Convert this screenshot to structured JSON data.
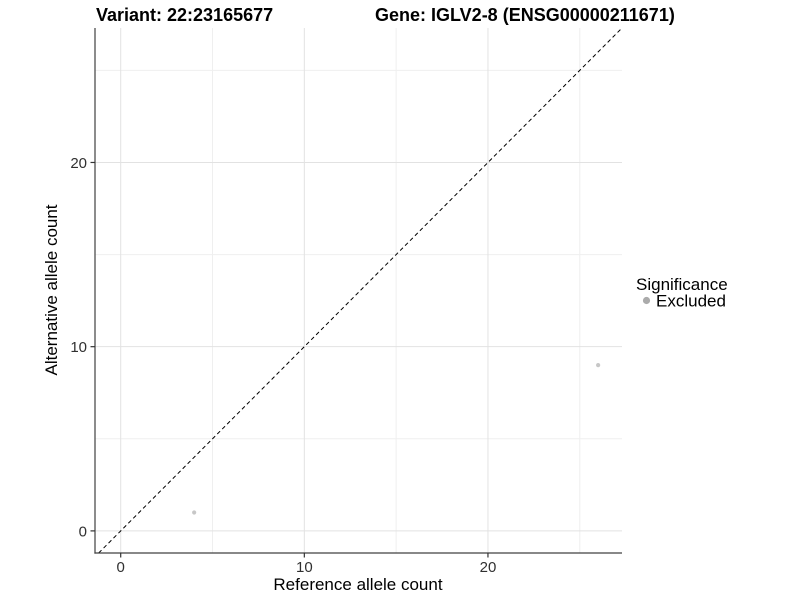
{
  "chart_data": {
    "type": "scatter",
    "title_left": "Variant: 22:23165677",
    "title_right": "Gene: IGLV2-8 (ENSG00000211671)",
    "xlabel": "Reference allele count",
    "ylabel": "Alternative allele count",
    "xlim": [
      -1.4,
      27.3
    ],
    "ylim": [
      -1.2,
      27.3
    ],
    "x_ticks": [
      0,
      10,
      20
    ],
    "y_ticks": [
      0,
      10,
      20
    ],
    "x_minor_ticks": [
      5,
      15,
      25
    ],
    "y_minor_ticks": [
      5,
      15,
      25
    ],
    "grid": "major-and-minor-light-gray",
    "legend_position": "right-middle",
    "series": [
      {
        "name": "Excluded",
        "color": "#c7c7c7",
        "points": [
          [
            4,
            1
          ],
          [
            26,
            9
          ]
        ]
      }
    ],
    "reference_line": {
      "style": "dashed",
      "slope": 1,
      "intercept": 0,
      "color": "#000000"
    },
    "legend": {
      "title": "Significance",
      "items": [
        {
          "label": "Excluded",
          "color": "#ababab"
        }
      ]
    },
    "colors": {
      "axis_line": "#404040",
      "tick_mark": "#333333",
      "grid_major": "#e2e2e2",
      "grid_minor": "#efefef"
    }
  }
}
